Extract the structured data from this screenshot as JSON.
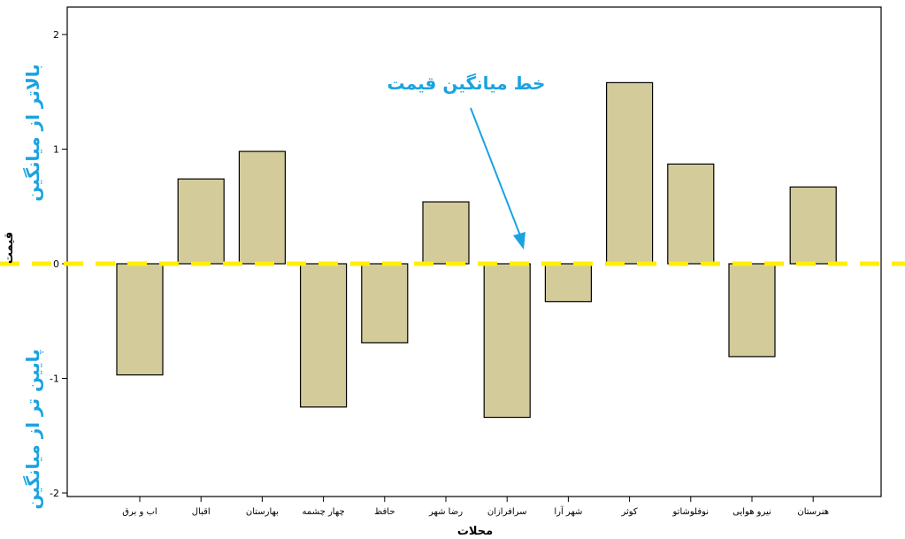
{
  "chart_data": {
    "type": "bar",
    "categories": [
      "اب و برق",
      "اقبال",
      "بهارستان",
      "چهار چشمه",
      "حافظ",
      "رضا شهر",
      "سرافرازان",
      "شهر آرا",
      "کوثر",
      "نوفلوشاتو",
      "نیرو هوایی",
      "هنرستان"
    ],
    "values": [
      -0.97,
      0.74,
      0.98,
      -1.25,
      -0.69,
      0.54,
      -1.34,
      -0.33,
      1.58,
      0.87,
      -0.81,
      0.67
    ],
    "ylabel": "قیمت",
    "xlabel": "محلات",
    "ylim": [
      -2,
      2.2
    ],
    "yticks": [
      2,
      1,
      0,
      -1,
      -2
    ],
    "grid": false,
    "reference_line": {
      "value": 0,
      "label": "خط میانگین قیمت"
    },
    "annotations": {
      "above": "بالاتر از میانگین",
      "below": "پایین تر از میانگین"
    },
    "colors": {
      "bar_fill": "#d4cb9b",
      "bar_stroke": "#000000",
      "mean_line": "#ffee00",
      "annotation": "#1aa3e0"
    }
  }
}
